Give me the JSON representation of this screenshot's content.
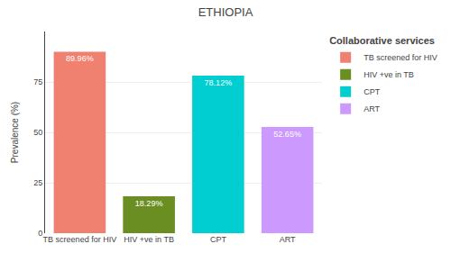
{
  "chart_data": {
    "type": "bar",
    "title": "ETHIOPIA",
    "categories": [
      "TB screened for HIV",
      "HIV +ve in TB",
      "CPT",
      "ART"
    ],
    "values": [
      89.96,
      18.29,
      78.12,
      52.65
    ],
    "value_labels": [
      "89.96%",
      "18.29%",
      "78.12%",
      "52.65%"
    ],
    "colors": [
      "#F08070",
      "#6B8E23",
      "#00CED1",
      "#CC99FF"
    ],
    "ylabel": "Prevalence (%)",
    "ylim": [
      0,
      100
    ],
    "yticks": [
      0,
      25,
      50,
      75
    ],
    "grid": true,
    "data_labels": true,
    "legend": "right",
    "legend_title": "Collaborative services"
  }
}
